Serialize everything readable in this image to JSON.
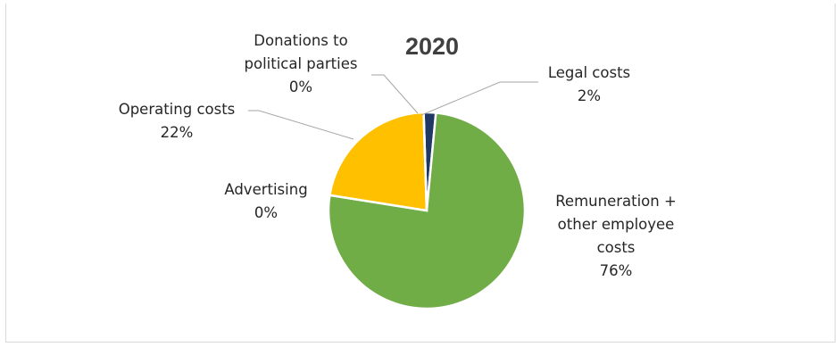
{
  "chart_data": {
    "type": "pie",
    "title": "2020",
    "slices": [
      {
        "label_lines": [
          "Legal costs"
        ],
        "pct_label": "2%",
        "value": 2,
        "color": "#1f3864"
      },
      {
        "label_lines": [
          "Remuneration +",
          "other employee",
          "costs"
        ],
        "pct_label": "76%",
        "value": 76,
        "color": "#70ad47"
      },
      {
        "label_lines": [
          "Advertising"
        ],
        "pct_label": "0%",
        "value": 0,
        "color": "#a5a5a5"
      },
      {
        "label_lines": [
          "Operating costs"
        ],
        "pct_label": "22%",
        "value": 22,
        "color": "#ffc000"
      },
      {
        "label_lines": [
          "Donations to",
          "political parties"
        ],
        "pct_label": "0%",
        "value": 0,
        "color": "#5b9bd5"
      }
    ]
  }
}
